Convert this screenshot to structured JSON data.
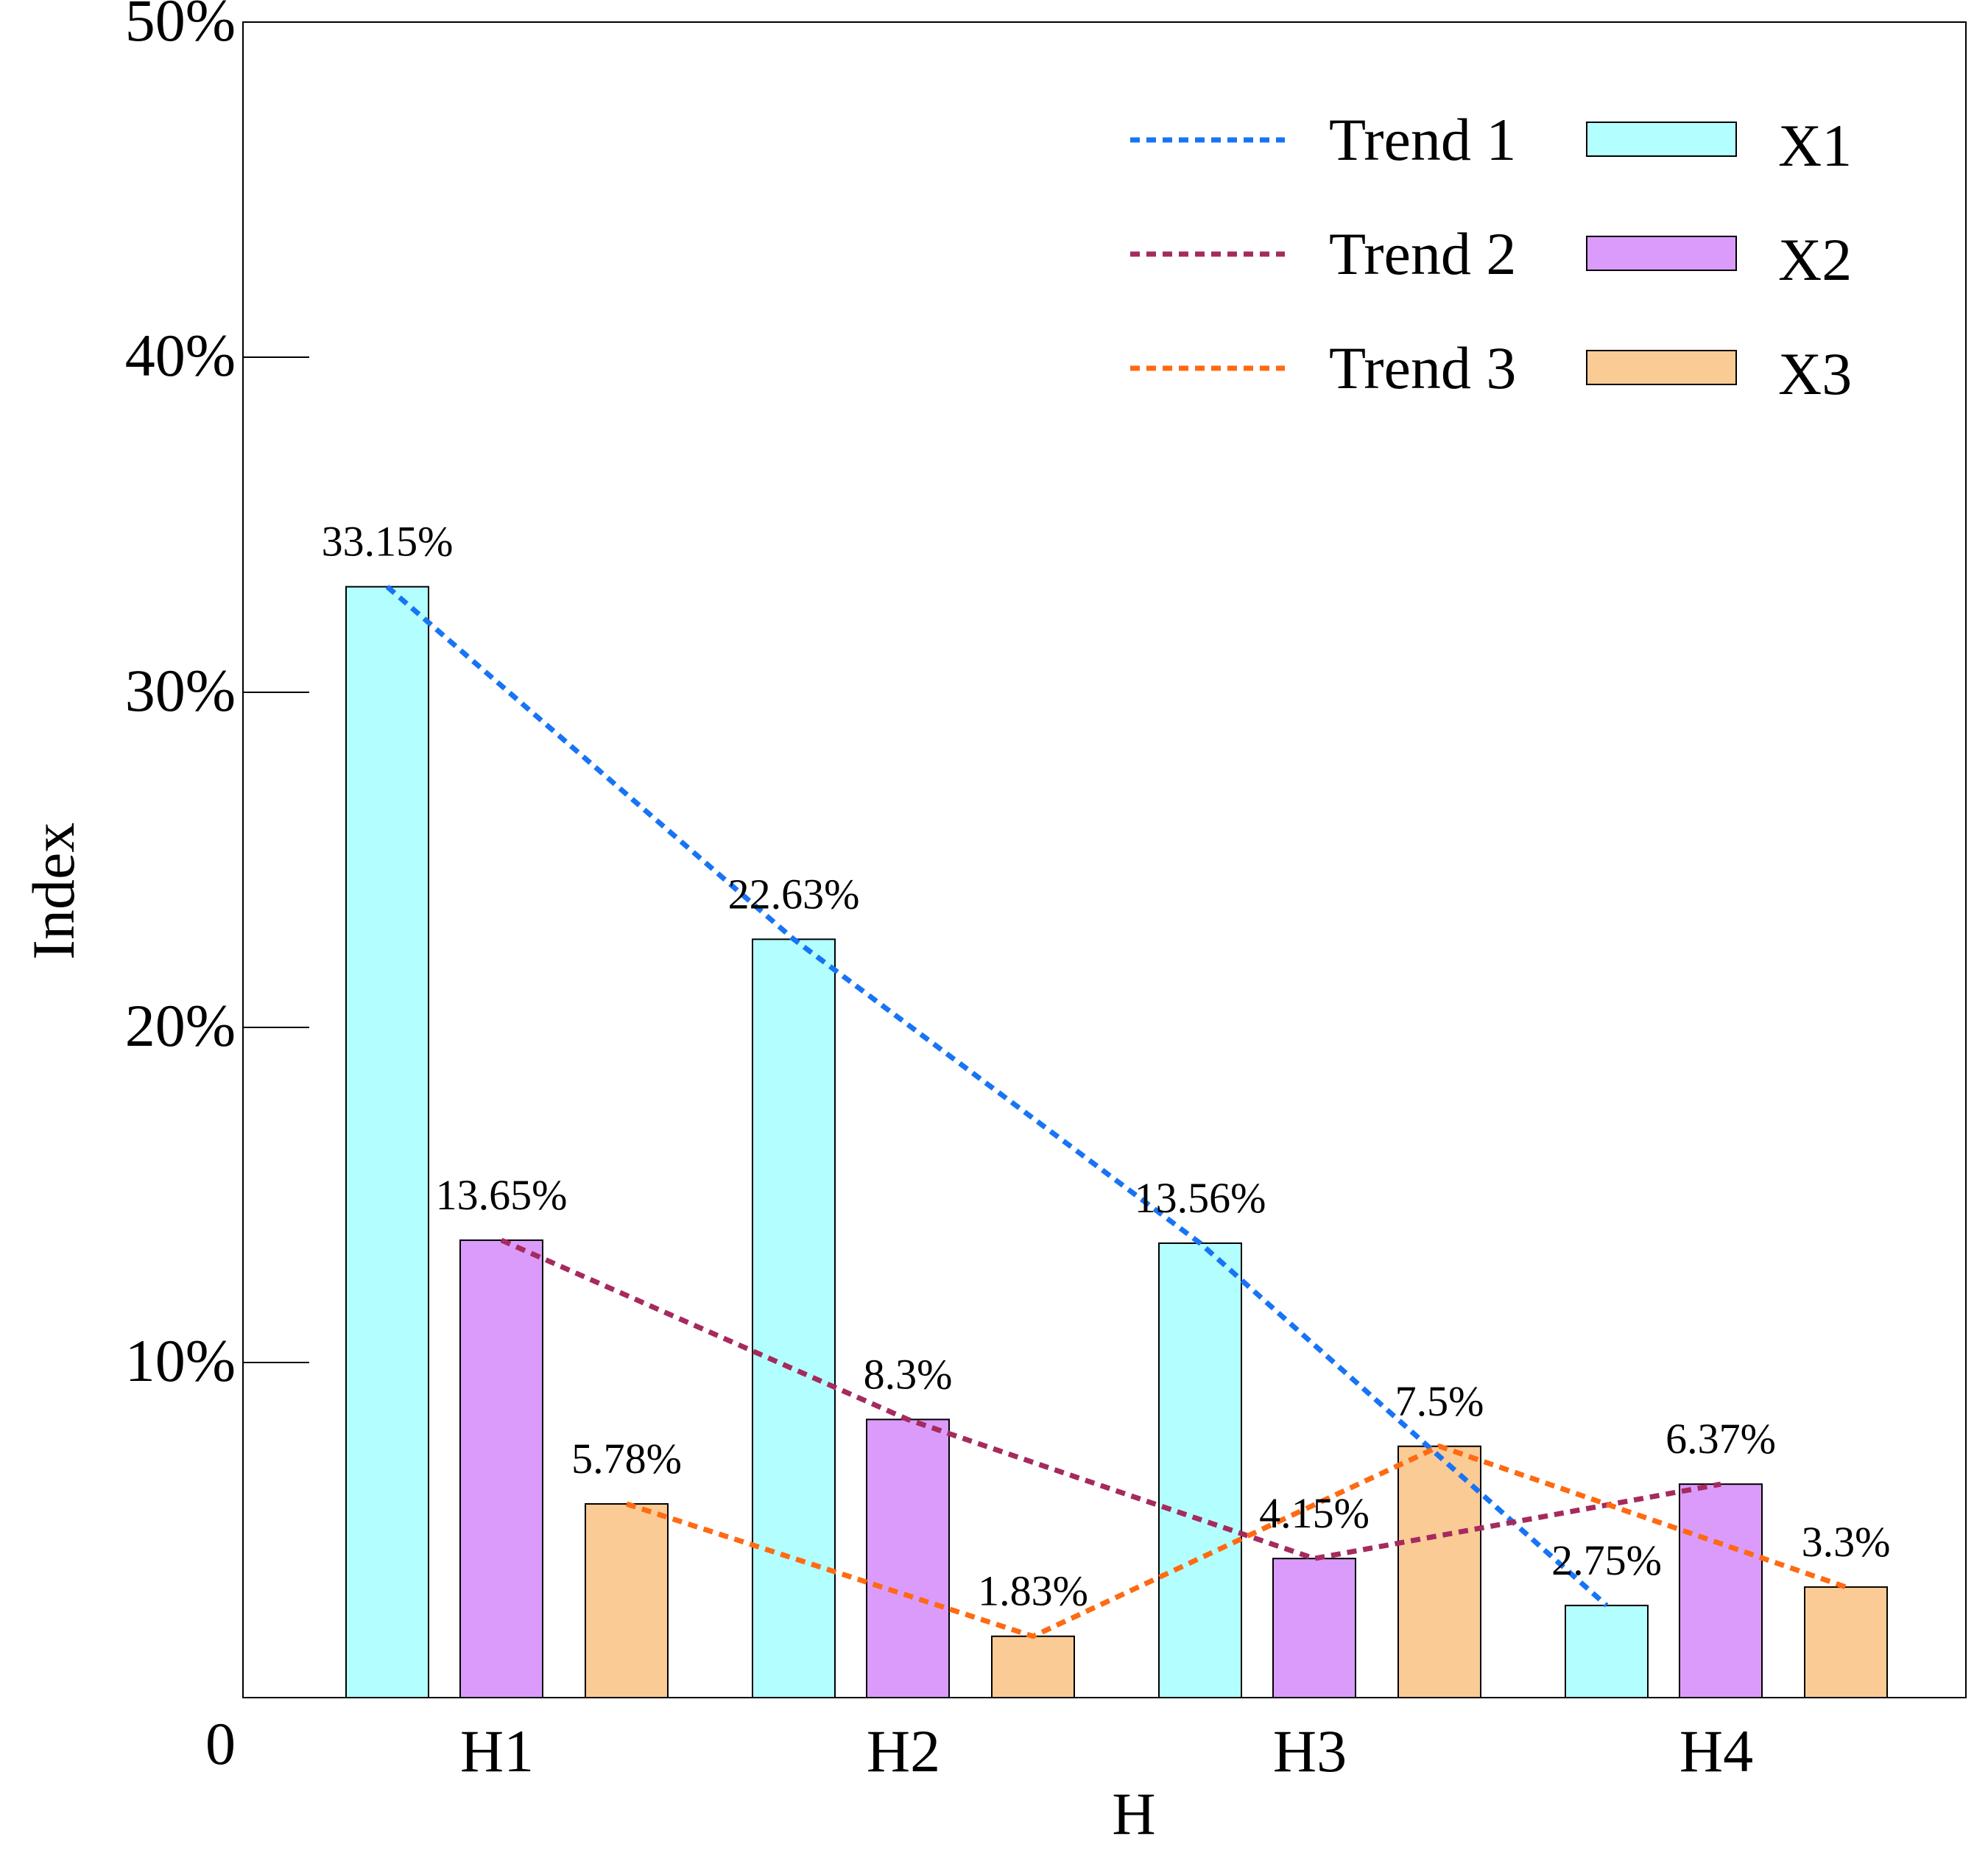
{
  "chart_data": {
    "type": "bar",
    "title": "",
    "xlabel": "H",
    "ylabel": "Index",
    "categories": [
      "H1",
      "H2",
      "H3",
      "H4"
    ],
    "ylim": [
      0,
      50
    ],
    "y_tick_labels": [
      "0",
      "10%",
      "20%",
      "30%",
      "40%",
      "50%"
    ],
    "y_tick_values": [
      0,
      10,
      20,
      30,
      40,
      50
    ],
    "series": [
      {
        "name": "X1",
        "values": [
          33.15,
          22.63,
          13.56,
          2.75
        ],
        "labels": [
          "33.15%",
          "22.63%",
          "13.56%",
          "2.75%"
        ],
        "color": "#B3FFFF"
      },
      {
        "name": "X2",
        "values": [
          13.65,
          8.3,
          4.15,
          6.37
        ],
        "labels": [
          "13.65%",
          "8.3%",
          "4.15%",
          "6.37%"
        ],
        "color": "#DB9BFA"
      },
      {
        "name": "X3",
        "values": [
          5.78,
          1.83,
          7.5,
          3.3
        ],
        "labels": [
          "5.78%",
          "1.83%",
          "7.5%",
          "3.3%"
        ],
        "color": "#FBCB96"
      }
    ],
    "trends": [
      {
        "name": "Trend 1",
        "series": "X1",
        "color": "#1874F5"
      },
      {
        "name": "Trend 2",
        "series": "X2",
        "color": "#A52A5E"
      },
      {
        "name": "Trend 3",
        "series": "X3",
        "color": "#FF6A12"
      }
    ],
    "legend_position": "top-right",
    "grid": false
  }
}
